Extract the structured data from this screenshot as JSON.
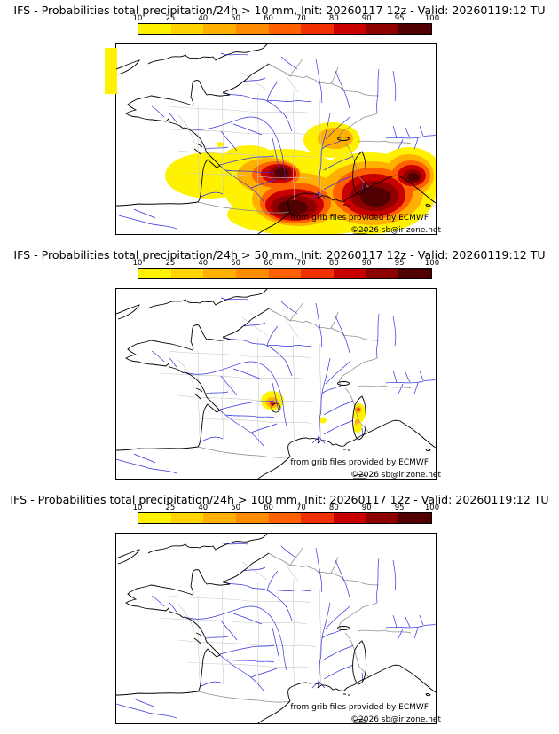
{
  "colorbar": {
    "labels": [
      "10",
      "25",
      "40",
      "50",
      "60",
      "70",
      "80",
      "90",
      "95",
      "100"
    ],
    "colors": [
      "#fff200",
      "#ffd400",
      "#ffb000",
      "#ff8c00",
      "#ff6000",
      "#f03000",
      "#c80000",
      "#8c0000",
      "#500000"
    ]
  },
  "map_colors": {
    "river": "#3333dd",
    "coastline": "#000000",
    "country_border": "#909090",
    "department_border": "#c8c8c8"
  },
  "panels": [
    {
      "title": "IFS - Probabilities total precipitation/24h > 10 mm, Init: 20260117 12z - Valid: 20260119:12 TU"
    },
    {
      "title": "IFS - Probabilities total precipitation/24h > 50 mm, Init: 20260117 12z - Valid: 20260119:12 TU"
    },
    {
      "title": "IFS - Probabilities total precipitation/24h > 100 mm, Init: 20260117 12z - Valid: 20260119:12 TU"
    }
  ],
  "attribution": {
    "line1": "from grib files provided by ECMWF",
    "line2": "©2026 sb@irizone.net"
  }
}
